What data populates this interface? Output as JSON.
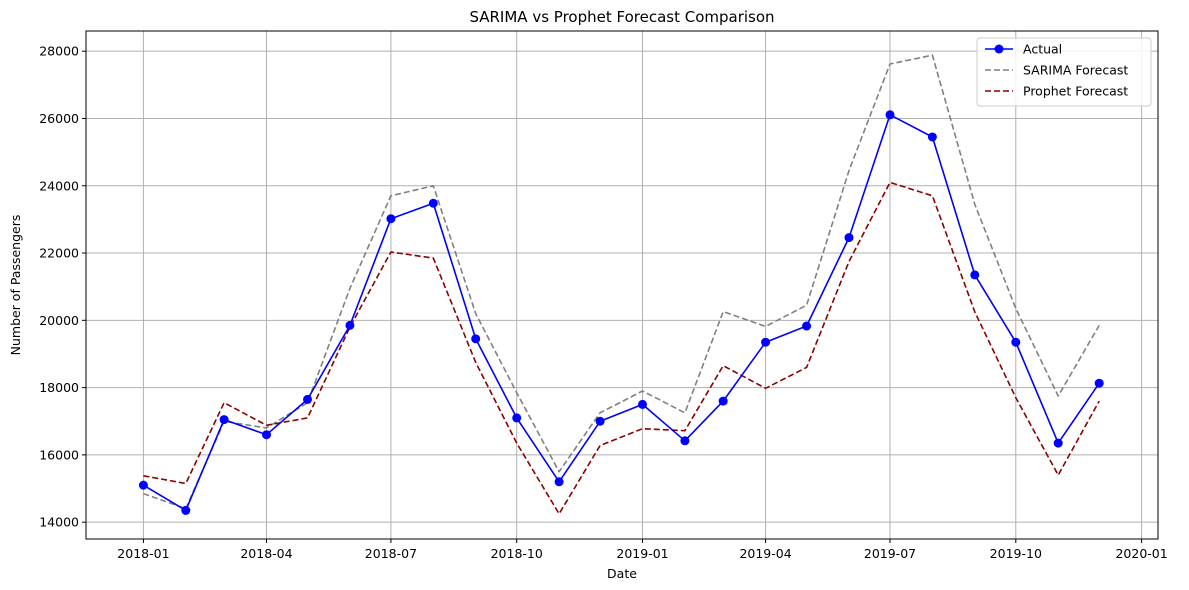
{
  "chart_data": {
    "type": "line",
    "title": "SARIMA vs Prophet Forecast Comparison",
    "xlabel": "Date",
    "ylabel": "Number of Passengers",
    "x": [
      "2018-01-01",
      "2018-02-01",
      "2018-03-01",
      "2018-04-01",
      "2018-05-01",
      "2018-06-01",
      "2018-07-01",
      "2018-08-01",
      "2018-09-01",
      "2018-10-01",
      "2018-11-01",
      "2018-12-01",
      "2019-01-01",
      "2019-02-01",
      "2019-03-01",
      "2019-04-01",
      "2019-05-01",
      "2019-06-01",
      "2019-07-01",
      "2019-08-01",
      "2019-09-01",
      "2019-10-01",
      "2019-11-01",
      "2019-12-01"
    ],
    "xlim": [
      "2017-11-20",
      "2020-01-13"
    ],
    "ylim": [
      13500,
      28600
    ],
    "x_ticks": [
      "2018-01-01",
      "2018-04-01",
      "2018-07-01",
      "2018-10-01",
      "2019-01-01",
      "2019-04-01",
      "2019-07-01",
      "2019-10-01",
      "2020-01-01"
    ],
    "x_tick_labels": [
      "2018-01",
      "2018-04",
      "2018-07",
      "2018-10",
      "2019-01",
      "2019-04",
      "2019-07",
      "2019-10",
      "2020-01"
    ],
    "y_ticks": [
      14000,
      16000,
      18000,
      20000,
      22000,
      24000,
      26000,
      28000
    ],
    "y_tick_labels": [
      "14000",
      "16000",
      "18000",
      "20000",
      "22000",
      "24000",
      "26000",
      "28000"
    ],
    "grid": true,
    "legend_position": "top-right",
    "series": [
      {
        "name": "Actual",
        "color": "#0000ff",
        "style": "solid-marker",
        "values": [
          15100,
          14350,
          17050,
          16600,
          17650,
          19850,
          23020,
          23480,
          19450,
          17100,
          15200,
          17000,
          17500,
          16420,
          17600,
          19350,
          19830,
          22460,
          26110,
          25450,
          21350,
          19350,
          16350,
          18130
        ]
      },
      {
        "name": "SARIMA Forecast",
        "color": "#808080",
        "style": "dashed",
        "values": [
          14850,
          14400,
          17000,
          16800,
          17550,
          20950,
          23700,
          24000,
          20200,
          17850,
          15500,
          17250,
          17900,
          17250,
          20260,
          19820,
          20450,
          24450,
          27620,
          27880,
          23450,
          20350,
          17750,
          19850
        ]
      },
      {
        "name": "Prophet Forecast",
        "color": "#8b0000",
        "style": "dashed",
        "values": [
          15380,
          15150,
          17550,
          16880,
          17100,
          19800,
          22030,
          21850,
          18750,
          16350,
          14250,
          16280,
          16780,
          16720,
          18650,
          17980,
          18600,
          21750,
          24100,
          23700,
          20250,
          17700,
          15400,
          17600
        ]
      }
    ]
  }
}
